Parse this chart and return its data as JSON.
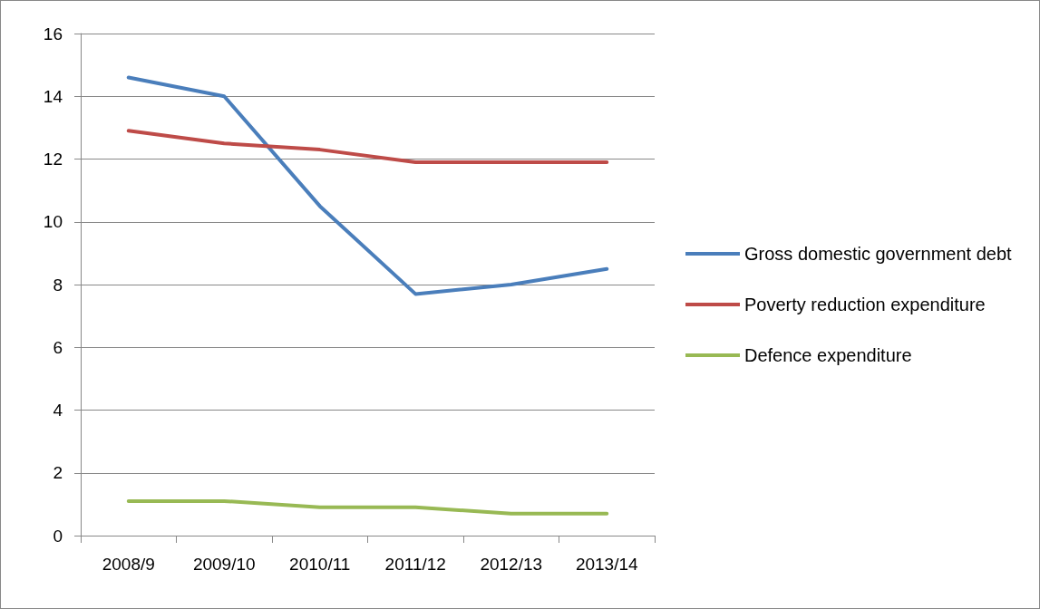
{
  "chart_data": {
    "type": "line",
    "categories": [
      "2008/9",
      "2009/10",
      "2010/11",
      "2011/12",
      "2012/13",
      "2013/14"
    ],
    "series": [
      {
        "name": "Gross domestic government debt",
        "color": "#4a7ebb",
        "values": [
          14.6,
          14.0,
          10.5,
          7.7,
          8.0,
          8.5
        ]
      },
      {
        "name": "Poverty reduction expenditure",
        "color": "#be4b48",
        "values": [
          12.9,
          12.5,
          12.3,
          11.9,
          11.9,
          11.9
        ]
      },
      {
        "name": "Defence expenditure",
        "color": "#98b954",
        "values": [
          1.1,
          1.1,
          0.9,
          0.9,
          0.7,
          0.7
        ]
      }
    ],
    "ylim": [
      0,
      16
    ],
    "yticks": [
      0,
      2,
      4,
      6,
      8,
      10,
      12,
      14,
      16
    ],
    "grid": "y",
    "legend": "right",
    "marker": "none",
    "line_style": "solid"
  }
}
